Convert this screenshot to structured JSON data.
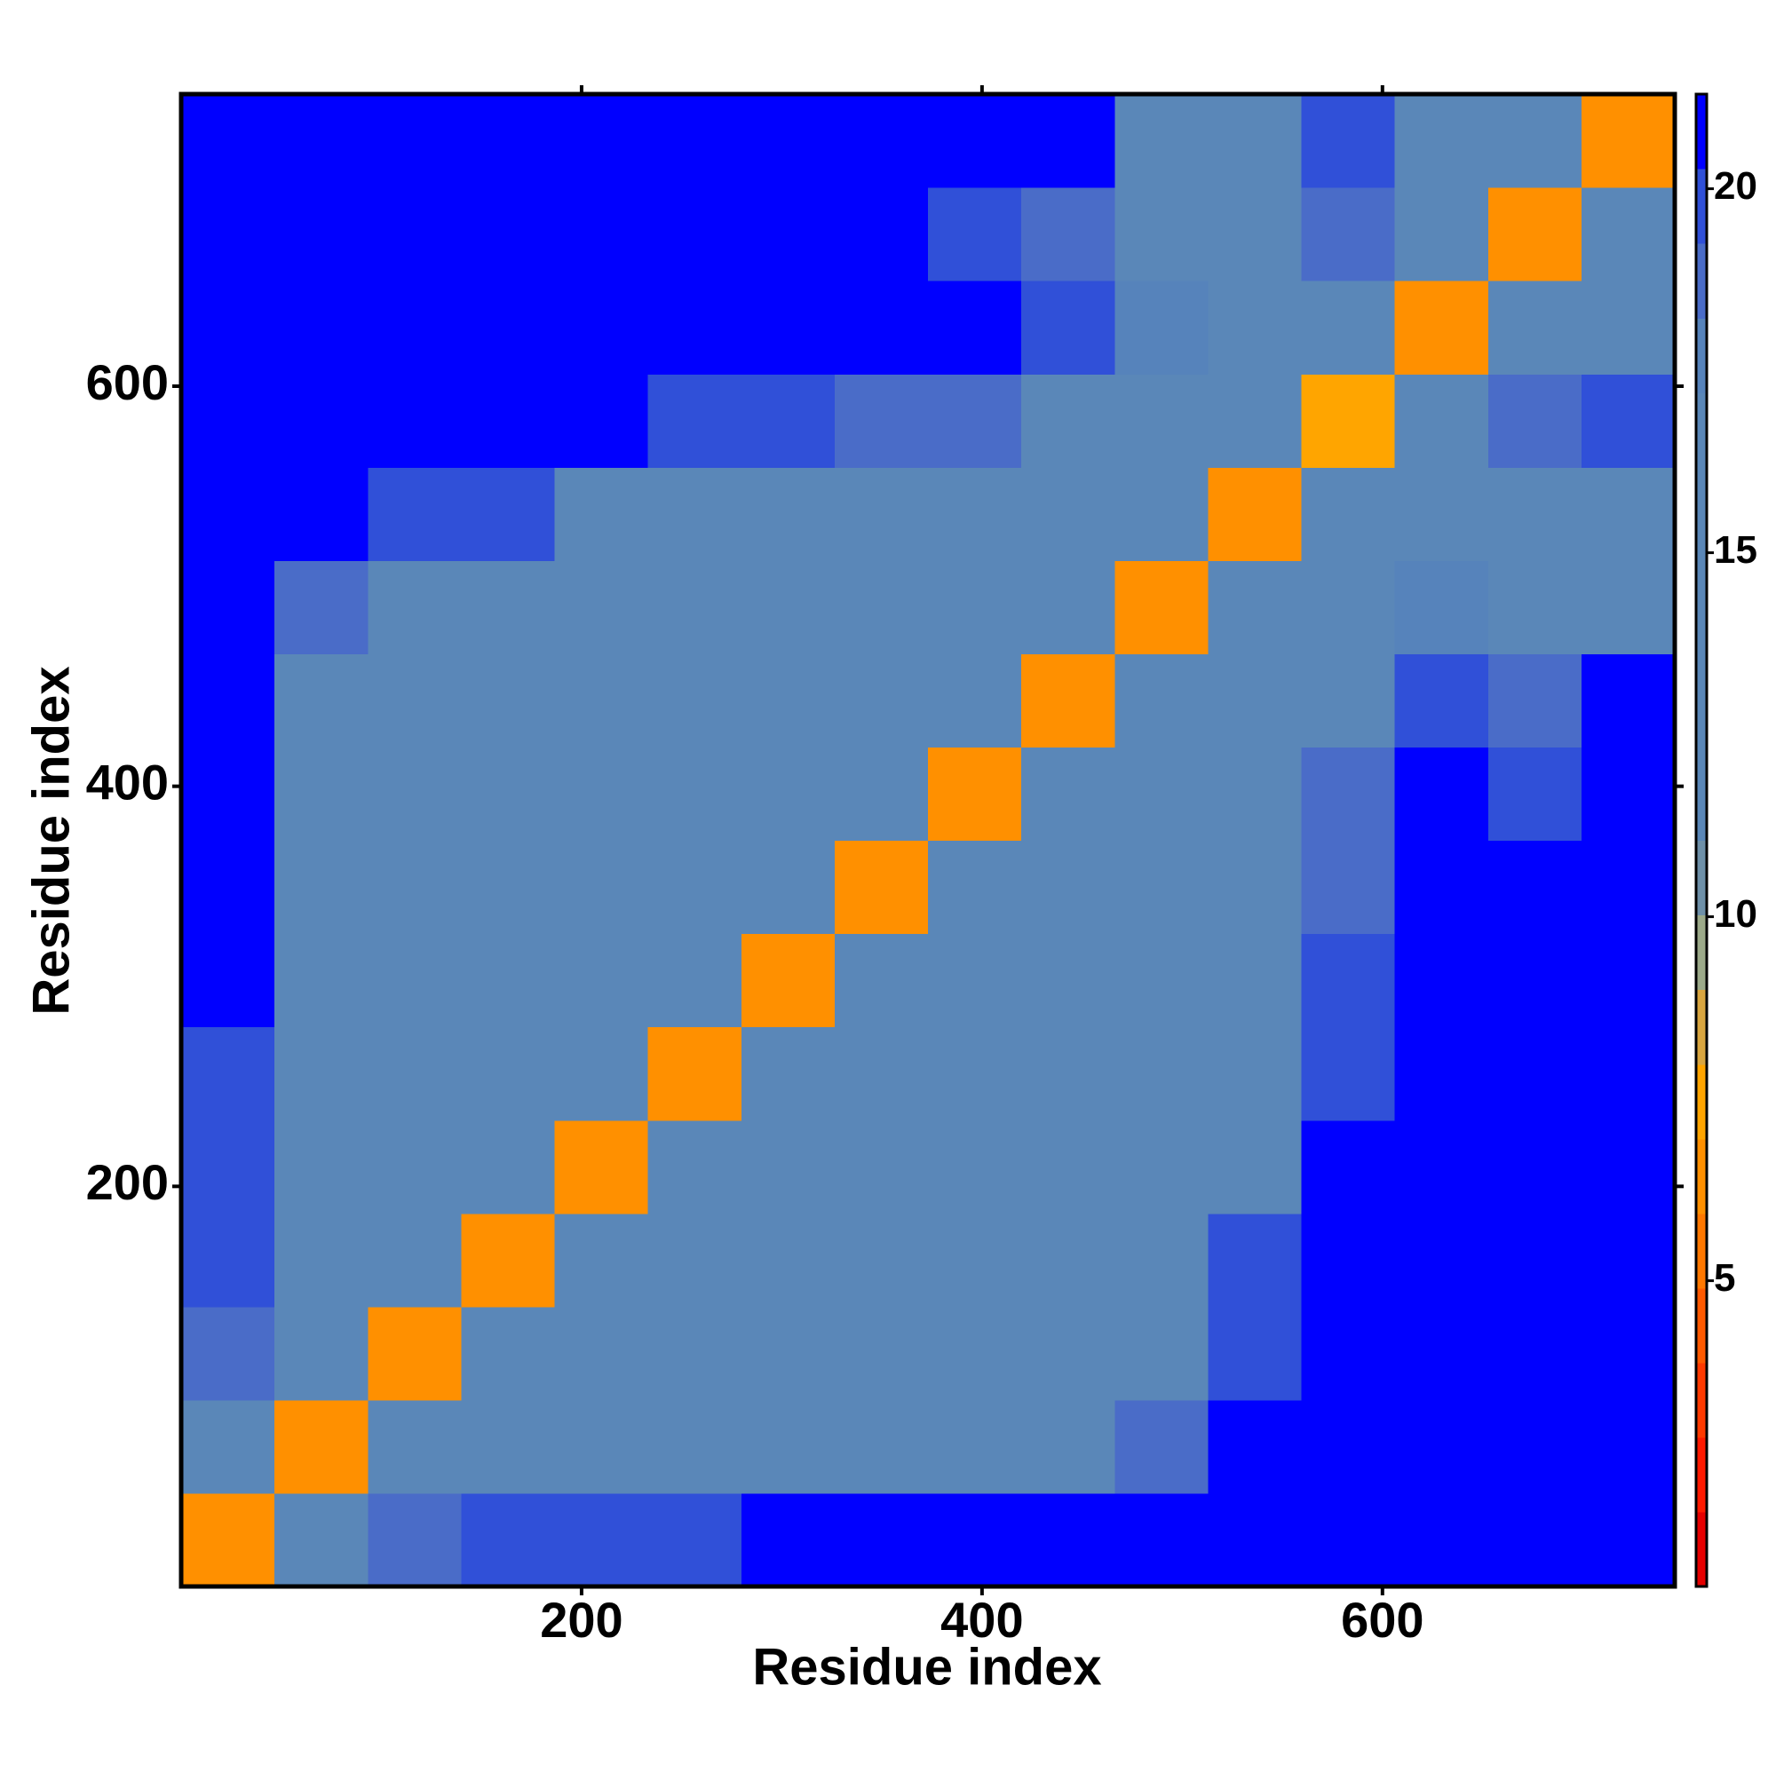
{
  "chart_data": {
    "type": "heatmap",
    "x_label": "Residue index",
    "y_label": "Residue index",
    "xlim": [
      0,
      746
    ],
    "ylim": [
      0,
      746
    ],
    "xticks": [
      200,
      400,
      600
    ],
    "yticks": [
      200,
      400,
      600
    ],
    "zlim": [
      0.8,
      21.3
    ],
    "zticks": [
      5,
      10,
      15,
      20
    ],
    "colors": [
      "#e60000",
      "#ff1a00",
      "#ff3a00",
      "#ff5a00",
      "#ff7800",
      "#ff9000",
      "#ffa500",
      "#d9a640",
      "#9caa8a",
      "#6e90a8",
      "#5a87b8",
      "#5a87b8",
      "#5a87b8",
      "#5a87b8",
      "#5a87b8",
      "#5a87b8",
      "#5683bb",
      "#4a6cc8",
      "#3050d8",
      "#0000ff"
    ],
    "z": [
      [
        6,
        15,
        19,
        20,
        20,
        20,
        21,
        21,
        21,
        21,
        21,
        21,
        21,
        21,
        21,
        21
      ],
      [
        15,
        6,
        12,
        14,
        15,
        16,
        16,
        15,
        14,
        14,
        19,
        21,
        21,
        21,
        21,
        21
      ],
      [
        19,
        12,
        6,
        12,
        14,
        15,
        15,
        14,
        14,
        15,
        17,
        20,
        21,
        21,
        21,
        21
      ],
      [
        20,
        14,
        12,
        6,
        12,
        14,
        15,
        15,
        14,
        15,
        17,
        20,
        21,
        21,
        21,
        21
      ],
      [
        20,
        15,
        14,
        12,
        6,
        12,
        14,
        15,
        15,
        14,
        15,
        17,
        21,
        21,
        21,
        21
      ],
      [
        20,
        16,
        15,
        14,
        12,
        6,
        12,
        14,
        15,
        15,
        14,
        15,
        20,
        21,
        21,
        21
      ],
      [
        21,
        16,
        15,
        15,
        14,
        12,
        6,
        12,
        14,
        15,
        15,
        16,
        20,
        21,
        21,
        21
      ],
      [
        21,
        15,
        14,
        15,
        15,
        14,
        12,
        6,
        12,
        14,
        15,
        16,
        19,
        21,
        21,
        21
      ],
      [
        21,
        14,
        14,
        14,
        15,
        15,
        14,
        12,
        6,
        12,
        14,
        15,
        19,
        21,
        20,
        21
      ],
      [
        21,
        14,
        15,
        15,
        14,
        15,
        15,
        14,
        12,
        6,
        12,
        14,
        17,
        20,
        19,
        21
      ],
      [
        21,
        19,
        17,
        17,
        15,
        14,
        15,
        15,
        14,
        12,
        6,
        12,
        16,
        18,
        15,
        17
      ],
      [
        21,
        21,
        20,
        20,
        17,
        15,
        16,
        16,
        15,
        14,
        12,
        6,
        12,
        17,
        15,
        17
      ],
      [
        21,
        21,
        21,
        21,
        21,
        20,
        20,
        19,
        19,
        17,
        16,
        12,
        7,
        12,
        19,
        20
      ],
      [
        21,
        21,
        21,
        21,
        21,
        21,
        21,
        21,
        21,
        20,
        18,
        17,
        12,
        6,
        14,
        16
      ],
      [
        21,
        21,
        21,
        21,
        21,
        21,
        21,
        21,
        20,
        19,
        15,
        15,
        19,
        14,
        6,
        12
      ],
      [
        21,
        21,
        21,
        21,
        21,
        21,
        21,
        21,
        21,
        21,
        17,
        17,
        20,
        16,
        12,
        6
      ]
    ]
  }
}
